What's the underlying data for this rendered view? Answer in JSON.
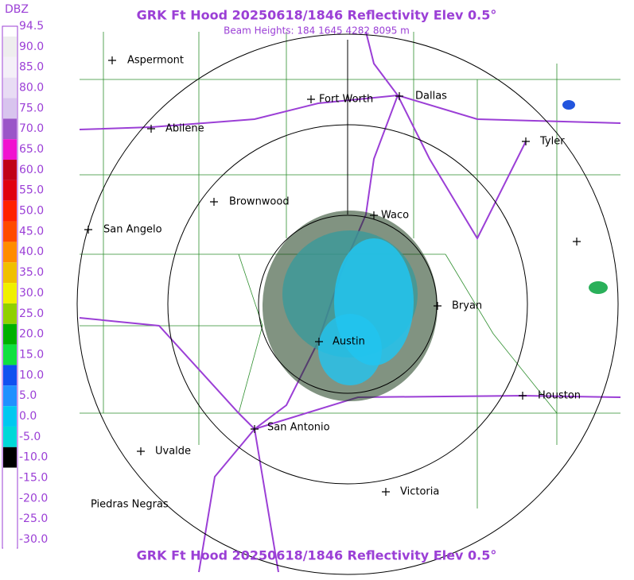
{
  "header": {
    "title": "GRK Ft Hood 20250618/1846 Reflectivity Elev 0.5°",
    "beam_heights": "Beam Heights: 184 1645 4282 8095 m"
  },
  "legend": {
    "title": "DBZ",
    "labels": [
      "94.5",
      "90.0",
      "85.0",
      "80.0",
      "75.0",
      "70.0",
      "65.0",
      "60.0",
      "55.0",
      "50.0",
      "45.0",
      "40.0",
      "35.0",
      "30.0",
      "25.0",
      "20.0",
      "15.0",
      "10.0",
      "5.0",
      "0.0",
      "-5.0",
      "-10.0",
      "-15.0",
      "-20.0",
      "-25.0",
      "-30.0"
    ]
  },
  "cities": [
    "Aspermont",
    "Fort Worth",
    "Dallas",
    "Tyler",
    "Abilene",
    "Brownwood",
    "Waco",
    "San Angelo",
    "Bryan",
    "Austin",
    "Houston",
    "San Antonio",
    "Uvalde",
    "Victoria",
    "Piedras Negras"
  ],
  "footer": {
    "title": "GRK Ft Hood 20250618/1846 Reflectivity Elev 0.5°"
  }
}
